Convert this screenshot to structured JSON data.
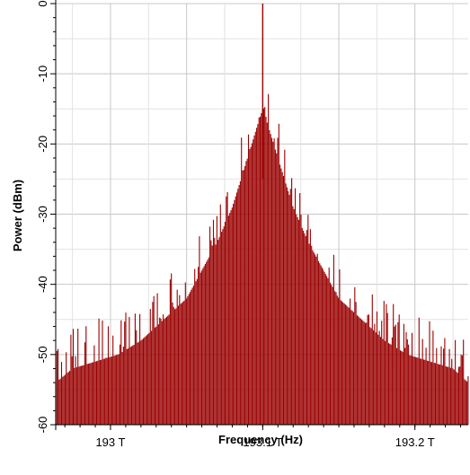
{
  "chart_data": {
    "type": "line",
    "title": "",
    "xlabel": "Frequency (Hz)",
    "ylabel": "Power (dBm)",
    "x_unit": "THz",
    "xlim": [
      192.964,
      193.235
    ],
    "ylim": [
      -60,
      0
    ],
    "x_ticks": [
      {
        "value": 193.0,
        "label": "193 T"
      },
      {
        "value": 193.1,
        "label": "193.1 T"
      },
      {
        "value": 193.2,
        "label": "193.2 T"
      }
    ],
    "y_ticks": [
      {
        "value": 0,
        "label": "0"
      },
      {
        "value": -10,
        "label": "-10"
      },
      {
        "value": -20,
        "label": "-20"
      },
      {
        "value": -30,
        "label": "-30"
      },
      {
        "value": -40,
        "label": "-40"
      },
      {
        "value": -50,
        "label": "-50"
      },
      {
        "value": -60,
        "label": "-60"
      }
    ],
    "grid": true,
    "legend": "none",
    "series": [
      {
        "color": "#990000",
        "carrier": {
          "x": 193.1,
          "y": 0
        },
        "envelope_peaks": [
          {
            "x": 192.964,
            "y": -54
          },
          {
            "x": 192.975,
            "y": -52
          },
          {
            "x": 192.99,
            "y": -51
          },
          {
            "x": 193.005,
            "y": -50
          },
          {
            "x": 193.02,
            "y": -48
          },
          {
            "x": 193.035,
            "y": -45
          },
          {
            "x": 193.05,
            "y": -42
          },
          {
            "x": 193.06,
            "y": -38
          },
          {
            "x": 193.07,
            "y": -34
          },
          {
            "x": 193.08,
            "y": -29
          },
          {
            "x": 193.09,
            "y": -22
          },
          {
            "x": 193.097,
            "y": -17
          },
          {
            "x": 193.1,
            "y": -15
          },
          {
            "x": 193.103,
            "y": -17
          },
          {
            "x": 193.11,
            "y": -22
          },
          {
            "x": 193.12,
            "y": -29
          },
          {
            "x": 193.13,
            "y": -34
          },
          {
            "x": 193.14,
            "y": -38
          },
          {
            "x": 193.15,
            "y": -42
          },
          {
            "x": 193.165,
            "y": -45
          },
          {
            "x": 193.18,
            "y": -48
          },
          {
            "x": 193.195,
            "y": -50
          },
          {
            "x": 193.21,
            "y": -51
          },
          {
            "x": 193.225,
            "y": -52
          },
          {
            "x": 193.235,
            "y": -54
          }
        ],
        "floor": -60
      }
    ]
  }
}
